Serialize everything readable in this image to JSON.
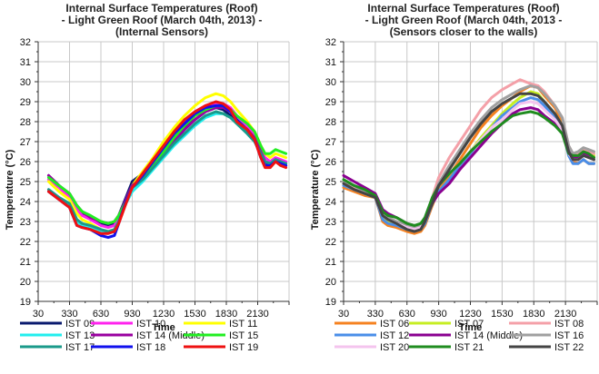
{
  "chart_data": [
    {
      "type": "line",
      "title": [
        "Internal Surface Temperatures (Roof)",
        "- Light Green Roof (March 04th, 2013) -",
        "(Internal Sensors)"
      ],
      "xlabel": "Time",
      "ylabel": "Temperature (°C)",
      "ylim": [
        19,
        32
      ],
      "yticks": [
        19,
        20,
        21,
        22,
        23,
        24,
        25,
        26,
        27,
        28,
        29,
        30,
        31,
        32
      ],
      "xlim": [
        30,
        2430
      ],
      "xticks": [
        "30",
        "330",
        "630",
        "930",
        "1230",
        "1530",
        "1830",
        "2130"
      ],
      "grid": true,
      "legend": "bottom",
      "x": [
        130,
        230,
        330,
        400,
        450,
        530,
        630,
        700,
        760,
        800,
        870,
        930,
        1030,
        1130,
        1230,
        1330,
        1430,
        1530,
        1630,
        1730,
        1800,
        1870,
        1930,
        2030,
        2100,
        2160,
        2200,
        2250,
        2300,
        2350,
        2400
      ],
      "series": [
        {
          "name": "IST 09",
          "color": "#0a1a6e",
          "values": [
            25.3,
            24.8,
            24.3,
            23.7,
            23.4,
            23.2,
            22.9,
            22.8,
            22.9,
            23.3,
            24.2,
            25.0,
            25.4,
            26.0,
            26.6,
            27.2,
            27.7,
            28.1,
            28.5,
            28.7,
            28.6,
            28.3,
            28.0,
            27.6,
            27.2,
            26.5,
            26.0,
            25.8,
            26.0,
            25.9,
            25.8
          ]
        },
        {
          "name": "IST 10",
          "color": "#ff22ee",
          "values": [
            25.1,
            24.7,
            24.2,
            23.6,
            23.3,
            23.1,
            22.8,
            22.7,
            22.8,
            23.2,
            24.1,
            24.8,
            25.3,
            26.0,
            26.7,
            27.4,
            28.0,
            28.5,
            28.8,
            28.9,
            28.9,
            28.7,
            28.3,
            27.8,
            27.3,
            26.6,
            26.2,
            26.0,
            26.2,
            26.1,
            26.0
          ]
        },
        {
          "name": "IST 11",
          "color": "#ffff00",
          "values": [
            25.0,
            24.5,
            24.1,
            23.4,
            23.1,
            22.9,
            22.6,
            22.5,
            22.6,
            23.0,
            24.0,
            24.8,
            25.5,
            26.2,
            27.0,
            27.7,
            28.3,
            28.8,
            29.2,
            29.4,
            29.3,
            29.0,
            28.6,
            28.0,
            27.5,
            26.8,
            26.4,
            26.2,
            26.4,
            26.3,
            26.2
          ]
        },
        {
          "name": "IST 13",
          "color": "#22eeee",
          "values": [
            24.6,
            24.2,
            23.8,
            23.0,
            22.8,
            22.7,
            22.5,
            22.4,
            22.5,
            23.0,
            23.9,
            24.5,
            25.0,
            25.6,
            26.2,
            26.8,
            27.3,
            27.8,
            28.2,
            28.4,
            28.4,
            28.2,
            27.9,
            27.4,
            27.0,
            26.4,
            26.0,
            25.9,
            26.1,
            26.0,
            25.9
          ]
        },
        {
          "name": "IST 14 (Middle)",
          "color": "#9a00a0",
          "values": [
            25.3,
            24.8,
            24.4,
            23.8,
            23.5,
            23.2,
            23.0,
            22.9,
            23.0,
            23.3,
            24.1,
            24.8,
            25.2,
            25.8,
            26.4,
            27.0,
            27.6,
            28.1,
            28.5,
            28.7,
            28.7,
            28.5,
            28.1,
            27.6,
            27.2,
            26.5,
            26.0,
            25.9,
            26.1,
            26.0,
            25.9
          ]
        },
        {
          "name": "IST 15",
          "color": "#22ee22",
          "values": [
            25.2,
            24.8,
            24.4,
            23.8,
            23.5,
            23.3,
            23.0,
            22.9,
            23.0,
            23.3,
            24.0,
            24.7,
            25.2,
            25.9,
            26.5,
            27.2,
            27.8,
            28.3,
            28.6,
            28.8,
            28.8,
            28.6,
            28.3,
            27.9,
            27.5,
            26.8,
            26.4,
            26.4,
            26.6,
            26.5,
            26.4
          ]
        },
        {
          "name": "IST 17",
          "color": "#1a9a8a",
          "values": [
            24.6,
            24.2,
            23.9,
            23.1,
            22.9,
            22.8,
            22.6,
            22.5,
            22.6,
            23.0,
            24.0,
            24.7,
            25.1,
            25.7,
            26.3,
            26.9,
            27.4,
            27.9,
            28.3,
            28.5,
            28.4,
            28.2,
            27.9,
            27.4,
            27.0,
            26.4,
            26.0,
            25.9,
            26.1,
            26.0,
            25.9
          ]
        },
        {
          "name": "IST 18",
          "color": "#1010ee",
          "values": [
            24.5,
            24.1,
            23.7,
            22.8,
            22.7,
            22.6,
            22.3,
            22.2,
            22.3,
            22.9,
            24.0,
            24.7,
            25.3,
            26.0,
            26.7,
            27.4,
            27.9,
            28.4,
            28.7,
            28.8,
            28.8,
            28.5,
            28.1,
            27.6,
            27.1,
            26.2,
            25.8,
            25.8,
            26.0,
            25.9,
            25.8
          ]
        },
        {
          "name": "IST 19",
          "color": "#ee1111",
          "values": [
            24.5,
            24.1,
            23.7,
            22.8,
            22.7,
            22.6,
            22.4,
            22.4,
            22.5,
            22.9,
            23.9,
            24.7,
            25.4,
            26.1,
            26.8,
            27.5,
            28.1,
            28.5,
            28.8,
            29.0,
            28.9,
            28.6,
            28.0,
            27.6,
            27.1,
            26.2,
            25.7,
            25.7,
            26.0,
            25.8,
            25.7
          ]
        }
      ]
    },
    {
      "type": "line",
      "title": [
        "Internal Surface Temperatures (Roof)",
        "- Light Green Roof (March 04th, 2013 -",
        "(Sensors closer to the walls)"
      ],
      "xlabel": "Time",
      "ylabel": "Temperature (°C)",
      "ylim": [
        19,
        32
      ],
      "yticks": [
        19,
        20,
        21,
        22,
        23,
        24,
        25,
        26,
        27,
        28,
        29,
        30,
        31,
        32
      ],
      "xlim": [
        30,
        2430
      ],
      "xticks": [
        "30",
        "330",
        "630",
        "930",
        "1230",
        "1530",
        "1830",
        "2130"
      ],
      "grid": true,
      "legend": "bottom",
      "x": [
        30,
        130,
        230,
        330,
        400,
        450,
        530,
        630,
        700,
        760,
        800,
        870,
        930,
        1030,
        1130,
        1230,
        1330,
        1430,
        1530,
        1630,
        1700,
        1800,
        1870,
        1930,
        2030,
        2100,
        2160,
        2200,
        2250,
        2300,
        2350,
        2400
      ],
      "series": [
        {
          "name": "IST 06",
          "color": "#f58220",
          "values": [
            24.7,
            24.5,
            24.3,
            24.2,
            23.0,
            22.8,
            22.7,
            22.5,
            22.4,
            22.5,
            22.8,
            23.8,
            24.6,
            25.3,
            26.1,
            26.9,
            27.7,
            28.3,
            28.8,
            29.2,
            29.5,
            29.8,
            29.7,
            29.3,
            28.7,
            28.0,
            26.6,
            26.0,
            25.9,
            26.1,
            25.9,
            25.9
          ]
        },
        {
          "name": "IST 07",
          "color": "#c6ee22",
          "values": [
            24.9,
            24.7,
            24.4,
            24.2,
            23.3,
            23.0,
            22.9,
            22.7,
            22.6,
            22.7,
            23.0,
            23.9,
            24.5,
            25.1,
            25.8,
            26.5,
            27.2,
            27.8,
            28.4,
            28.9,
            29.2,
            29.5,
            29.4,
            29.0,
            28.4,
            27.8,
            26.5,
            26.2,
            26.2,
            26.4,
            26.3,
            26.3
          ]
        },
        {
          "name": "IST 08",
          "color": "#f4a0a8",
          "values": [
            24.9,
            24.7,
            24.5,
            24.3,
            23.3,
            23.1,
            22.9,
            22.7,
            22.6,
            22.7,
            23.1,
            24.2,
            25.2,
            26.2,
            27.0,
            27.8,
            28.6,
            29.2,
            29.6,
            29.9,
            30.1,
            29.9,
            29.8,
            29.5,
            28.8,
            28.2,
            26.8,
            26.4,
            26.4,
            26.6,
            26.5,
            26.4
          ]
        },
        {
          "name": "IST 12",
          "color": "#4a8ee8",
          "values": [
            24.8,
            24.6,
            24.4,
            24.2,
            23.1,
            22.9,
            22.8,
            22.6,
            22.5,
            22.6,
            22.9,
            23.9,
            24.5,
            25.1,
            25.8,
            26.4,
            27.1,
            27.7,
            28.3,
            28.7,
            29.0,
            29.2,
            29.1,
            28.8,
            28.2,
            27.6,
            26.3,
            25.9,
            25.9,
            26.1,
            25.9,
            25.9
          ]
        },
        {
          "name": "IST 14 (Middle)",
          "color": "#8a0090",
          "values": [
            25.3,
            25.0,
            24.7,
            24.4,
            23.6,
            23.4,
            23.2,
            22.9,
            22.8,
            22.8,
            23.1,
            23.9,
            24.4,
            24.9,
            25.6,
            26.2,
            26.8,
            27.4,
            27.9,
            28.4,
            28.6,
            28.7,
            28.6,
            28.3,
            27.9,
            27.5,
            26.6,
            26.2,
            26.2,
            26.4,
            26.3,
            26.2
          ]
        },
        {
          "name": "IST 16",
          "color": "#a0a0a0",
          "values": [
            25.0,
            24.8,
            24.5,
            24.3,
            23.4,
            23.2,
            23.0,
            22.8,
            22.7,
            22.8,
            23.1,
            24.0,
            24.9,
            25.8,
            26.6,
            27.4,
            28.1,
            28.7,
            29.1,
            29.4,
            29.6,
            29.8,
            29.7,
            29.4,
            28.8,
            28.2,
            26.8,
            26.4,
            26.5,
            26.7,
            26.6,
            26.5
          ]
        },
        {
          "name": "IST 20",
          "color": "#f4c4ee",
          "values": [
            24.9,
            24.6,
            24.4,
            24.2,
            23.3,
            23.1,
            22.9,
            22.7,
            22.6,
            22.7,
            23.1,
            24.2,
            24.8,
            25.4,
            25.9,
            26.5,
            27.1,
            27.7,
            28.1,
            28.6,
            28.9,
            29.0,
            28.9,
            28.6,
            28.1,
            27.6,
            26.4,
            26.1,
            26.1,
            26.3,
            26.2,
            26.1
          ]
        },
        {
          "name": "IST 21",
          "color": "#1f8c1f",
          "values": [
            25.1,
            24.8,
            24.6,
            24.3,
            23.5,
            23.3,
            23.2,
            22.9,
            22.8,
            22.9,
            23.2,
            24.2,
            24.8,
            25.4,
            25.9,
            26.5,
            27.0,
            27.5,
            27.9,
            28.3,
            28.4,
            28.5,
            28.4,
            28.2,
            27.8,
            27.4,
            26.4,
            26.3,
            26.3,
            26.5,
            26.4,
            26.2
          ]
        },
        {
          "name": "IST 22",
          "color": "#444444",
          "values": [
            24.9,
            24.6,
            24.4,
            24.2,
            23.3,
            23.1,
            22.9,
            22.6,
            22.5,
            22.6,
            23.0,
            23.9,
            24.8,
            25.6,
            26.4,
            27.2,
            27.9,
            28.5,
            28.9,
            29.2,
            29.4,
            29.4,
            29.3,
            29.0,
            28.4,
            27.8,
            26.5,
            26.1,
            26.1,
            26.3,
            26.2,
            26.1
          ]
        }
      ]
    }
  ]
}
